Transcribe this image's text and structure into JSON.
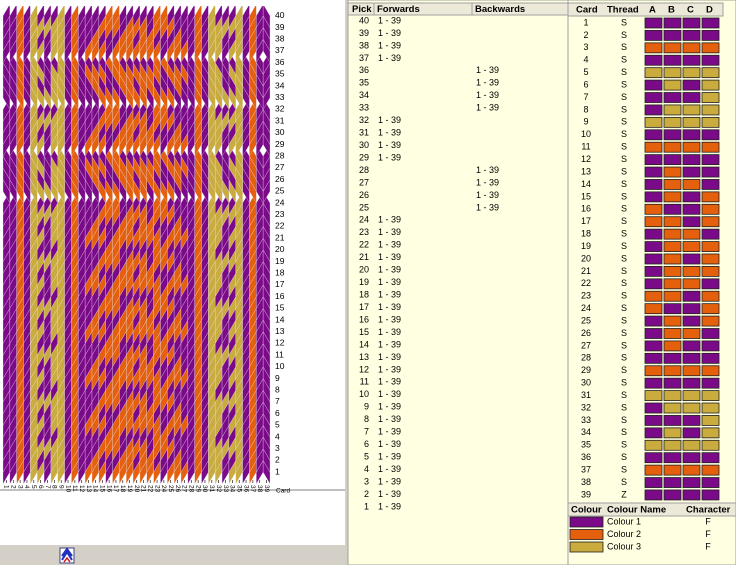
{
  "colours": [
    {
      "name": "Colour 1",
      "color": "#7b0a88",
      "character": "F"
    },
    {
      "name": "Colour 2",
      "color": "#e5600c",
      "character": "F"
    },
    {
      "name": "Colour 3",
      "color": "#c9ab3e",
      "character": "F"
    }
  ],
  "pick_header": {
    "pick": "Pick",
    "forwards": "Forwards",
    "backwards": "Backwards"
  },
  "card_header": {
    "card": "Card",
    "thread": "Thread",
    "a": "A",
    "b": "B",
    "c": "C",
    "d": "D"
  },
  "legend_header": {
    "colour": "Colour",
    "name": "Colour Name",
    "character": "Character"
  },
  "card_axis_label": "Card",
  "picks": [
    {
      "pick": 40,
      "forwards": "1 - 39"
    },
    {
      "pick": 39,
      "forwards": "1 - 39"
    },
    {
      "pick": 38,
      "forwards": "1 - 39"
    },
    {
      "pick": 37,
      "forwards": "1 - 39"
    },
    {
      "pick": 36,
      "backwards": "1 - 39"
    },
    {
      "pick": 35,
      "backwards": "1 - 39"
    },
    {
      "pick": 34,
      "backwards": "1 - 39"
    },
    {
      "pick": 33,
      "backwards": "1 - 39"
    },
    {
      "pick": 32,
      "forwards": "1 - 39"
    },
    {
      "pick": 31,
      "forwards": "1 - 39"
    },
    {
      "pick": 30,
      "forwards": "1 - 39"
    },
    {
      "pick": 29,
      "forwards": "1 - 39"
    },
    {
      "pick": 28,
      "backwards": "1 - 39"
    },
    {
      "pick": 27,
      "backwards": "1 - 39"
    },
    {
      "pick": 26,
      "backwards": "1 - 39"
    },
    {
      "pick": 25,
      "backwards": "1 - 39"
    },
    {
      "pick": 24,
      "forwards": "1 - 39"
    },
    {
      "pick": 23,
      "forwards": "1 - 39"
    },
    {
      "pick": 22,
      "forwards": "1 - 39"
    },
    {
      "pick": 21,
      "forwards": "1 - 39"
    },
    {
      "pick": 20,
      "forwards": "1 - 39"
    },
    {
      "pick": 19,
      "forwards": "1 - 39"
    },
    {
      "pick": 18,
      "forwards": "1 - 39"
    },
    {
      "pick": 17,
      "forwards": "1 - 39"
    },
    {
      "pick": 16,
      "forwards": "1 - 39"
    },
    {
      "pick": 15,
      "forwards": "1 - 39"
    },
    {
      "pick": 14,
      "forwards": "1 - 39"
    },
    {
      "pick": 13,
      "forwards": "1 - 39"
    },
    {
      "pick": 12,
      "forwards": "1 - 39"
    },
    {
      "pick": 11,
      "forwards": "1 - 39"
    },
    {
      "pick": 10,
      "forwards": "1 - 39"
    },
    {
      "pick": 9,
      "forwards": "1 - 39"
    },
    {
      "pick": 8,
      "forwards": "1 - 39"
    },
    {
      "pick": 7,
      "forwards": "1 - 39"
    },
    {
      "pick": 6,
      "forwards": "1 - 39"
    },
    {
      "pick": 5,
      "forwards": "1 - 39"
    },
    {
      "pick": 4,
      "forwards": "1 - 39"
    },
    {
      "pick": 3,
      "forwards": "1 - 39"
    },
    {
      "pick": 2,
      "forwards": "1 - 39"
    },
    {
      "pick": 1,
      "forwards": "1 - 39"
    }
  ],
  "cards": [
    {
      "card": 1,
      "thread": "S",
      "holes": [
        1,
        1,
        1,
        1
      ]
    },
    {
      "card": 2,
      "thread": "S",
      "holes": [
        1,
        1,
        1,
        1
      ]
    },
    {
      "card": 3,
      "thread": "S",
      "holes": [
        2,
        2,
        2,
        2
      ]
    },
    {
      "card": 4,
      "thread": "S",
      "holes": [
        1,
        1,
        1,
        1
      ]
    },
    {
      "card": 5,
      "thread": "S",
      "holes": [
        3,
        3,
        3,
        3
      ]
    },
    {
      "card": 6,
      "thread": "S",
      "holes": [
        1,
        3,
        1,
        3
      ]
    },
    {
      "card": 7,
      "thread": "S",
      "holes": [
        1,
        1,
        1,
        3
      ]
    },
    {
      "card": 8,
      "thread": "S",
      "holes": [
        1,
        3,
        3,
        3
      ]
    },
    {
      "card": 9,
      "thread": "S",
      "holes": [
        3,
        3,
        3,
        3
      ]
    },
    {
      "card": 10,
      "thread": "S",
      "holes": [
        1,
        1,
        1,
        1
      ]
    },
    {
      "card": 11,
      "thread": "S",
      "holes": [
        2,
        2,
        2,
        2
      ]
    },
    {
      "card": 12,
      "thread": "S",
      "holes": [
        1,
        1,
        1,
        1
      ]
    },
    {
      "card": 13,
      "thread": "S",
      "holes": [
        1,
        2,
        1,
        1
      ]
    },
    {
      "card": 14,
      "thread": "S",
      "holes": [
        1,
        2,
        2,
        1
      ]
    },
    {
      "card": 15,
      "thread": "S",
      "holes": [
        1,
        2,
        1,
        2
      ]
    },
    {
      "card": 16,
      "thread": "S",
      "holes": [
        2,
        1,
        1,
        2
      ]
    },
    {
      "card": 17,
      "thread": "S",
      "holes": [
        2,
        2,
        1,
        2
      ]
    },
    {
      "card": 18,
      "thread": "S",
      "holes": [
        1,
        2,
        2,
        1
      ]
    },
    {
      "card": 19,
      "thread": "S",
      "holes": [
        1,
        2,
        2,
        2
      ]
    },
    {
      "card": 20,
      "thread": "S",
      "holes": [
        1,
        2,
        1,
        2
      ]
    },
    {
      "card": 21,
      "thread": "S",
      "holes": [
        1,
        2,
        2,
        2
      ]
    },
    {
      "card": 22,
      "thread": "S",
      "holes": [
        1,
        2,
        2,
        1
      ]
    },
    {
      "card": 23,
      "thread": "S",
      "holes": [
        2,
        2,
        1,
        2
      ]
    },
    {
      "card": 24,
      "thread": "S",
      "holes": [
        2,
        1,
        1,
        2
      ]
    },
    {
      "card": 25,
      "thread": "S",
      "holes": [
        1,
        2,
        1,
        2
      ]
    },
    {
      "card": 26,
      "thread": "S",
      "holes": [
        1,
        2,
        2,
        1
      ]
    },
    {
      "card": 27,
      "thread": "S",
      "holes": [
        1,
        2,
        1,
        1
      ]
    },
    {
      "card": 28,
      "thread": "S",
      "holes": [
        1,
        1,
        1,
        1
      ]
    },
    {
      "card": 29,
      "thread": "S",
      "holes": [
        2,
        2,
        2,
        2
      ]
    },
    {
      "card": 30,
      "thread": "S",
      "holes": [
        1,
        1,
        1,
        1
      ]
    },
    {
      "card": 31,
      "thread": "S",
      "holes": [
        3,
        3,
        3,
        3
      ]
    },
    {
      "card": 32,
      "thread": "S",
      "holes": [
        1,
        3,
        3,
        3
      ]
    },
    {
      "card": 33,
      "thread": "S",
      "holes": [
        1,
        1,
        1,
        3
      ]
    },
    {
      "card": 34,
      "thread": "S",
      "holes": [
        1,
        3,
        1,
        3
      ]
    },
    {
      "card": 35,
      "thread": "S",
      "holes": [
        3,
        3,
        3,
        3
      ]
    },
    {
      "card": 36,
      "thread": "S",
      "holes": [
        1,
        1,
        1,
        1
      ]
    },
    {
      "card": 37,
      "thread": "S",
      "holes": [
        2,
        2,
        2,
        2
      ]
    },
    {
      "card": 38,
      "thread": "S",
      "holes": [
        1,
        1,
        1,
        1
      ]
    },
    {
      "card": 39,
      "thread": "Z",
      "holes": [
        1,
        1,
        1,
        1
      ]
    }
  ]
}
